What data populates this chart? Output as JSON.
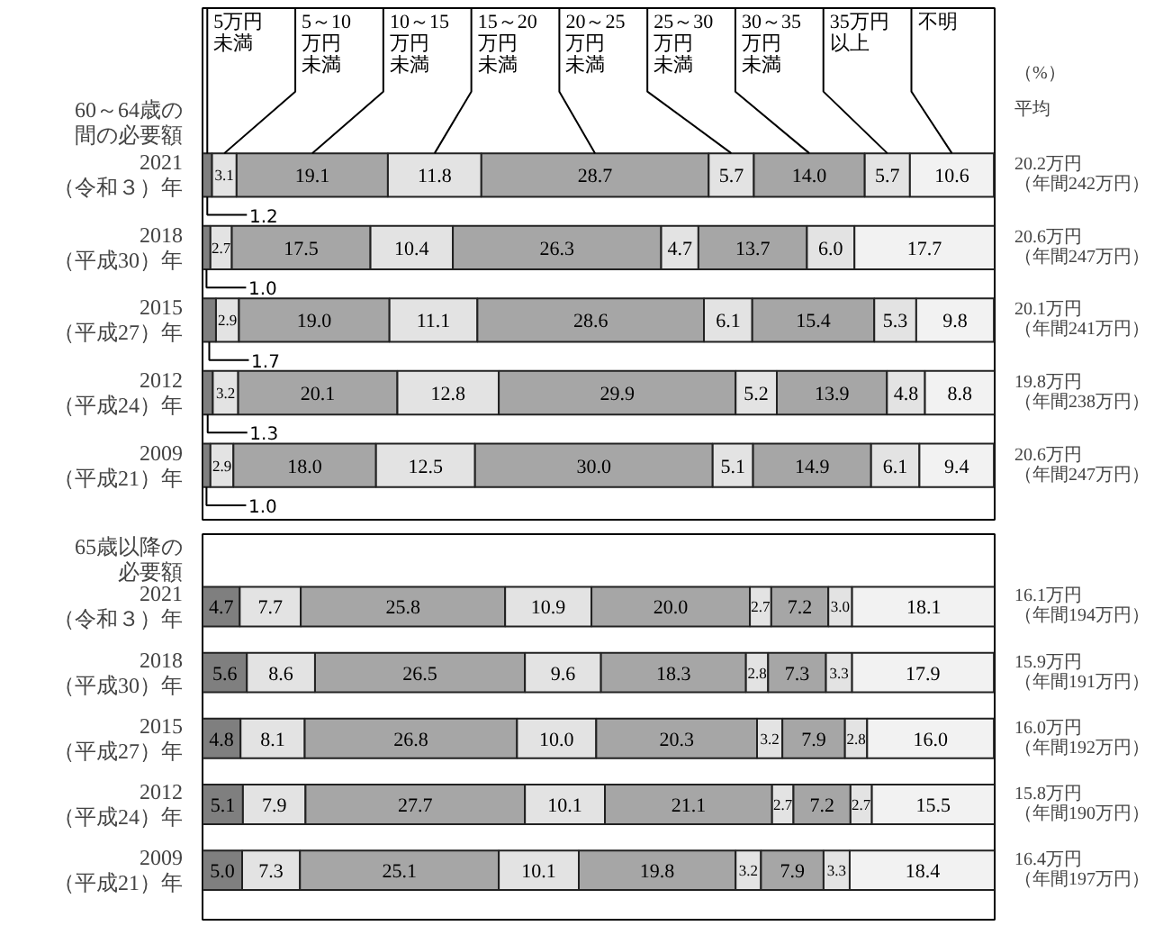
{
  "chart_data": [
    {
      "type": "bar",
      "orientation": "horizontal",
      "stacked": true,
      "title": "60～64歳の間の必要額",
      "categories": [
        "2021（令和３）年",
        "2018（平成30）年",
        "2015（平成27）年",
        "2012（平成24）年",
        "2009（平成21）年"
      ],
      "xlim": [
        0,
        100
      ],
      "tick_labels": "y",
      "legend": "top",
      "series": [
        {
          "name": "5万円未満",
          "color": "#7f7f7f",
          "values": [
            1.2,
            1.0,
            1.7,
            1.3,
            1.0
          ],
          "value_labels": [
            "1.2",
            "1.0",
            "1.7",
            "1.3",
            "1.0"
          ]
        },
        {
          "name": "5～10万円未満",
          "color": "#e3e3e3",
          "values": [
            3.1,
            2.7,
            2.9,
            3.2,
            2.9
          ],
          "value_labels": [
            "3.1",
            "2.7",
            "2.9",
            "3.2",
            "2.9"
          ]
        },
        {
          "name": "10～15万円未満",
          "color": "#a6a6a6",
          "values": [
            19.1,
            17.5,
            19.0,
            20.1,
            18.0
          ],
          "value_labels": [
            "19.1",
            "17.5",
            "19.0",
            "20.1",
            "18.0"
          ]
        },
        {
          "name": "15～20万円未満",
          "color": "#e3e3e3",
          "values": [
            11.8,
            10.4,
            11.1,
            12.8,
            12.5
          ],
          "value_labels": [
            "11.8",
            "10.4",
            "11.1",
            "12.8",
            "12.5"
          ]
        },
        {
          "name": "20～25万円未満",
          "color": "#a6a6a6",
          "values": [
            28.7,
            26.3,
            28.6,
            29.9,
            30.0
          ],
          "value_labels": [
            "28.7",
            "26.3",
            "28.6",
            "29.9",
            "30.0"
          ]
        },
        {
          "name": "25～30万円未満",
          "color": "#e3e3e3",
          "values": [
            5.7,
            4.7,
            6.1,
            5.2,
            5.1
          ],
          "value_labels": [
            "5.7",
            "4.7",
            "6.1",
            "5.2",
            "5.1"
          ]
        },
        {
          "name": "30～35万円未満",
          "color": "#a6a6a6",
          "values": [
            14.0,
            13.7,
            15.4,
            13.9,
            14.9
          ],
          "value_labels": [
            "14.0",
            "13.7",
            "15.4",
            "13.9",
            "14.9"
          ]
        },
        {
          "name": "35万円以上",
          "color": "#e3e3e3",
          "values": [
            5.7,
            6.0,
            5.3,
            4.8,
            6.1
          ],
          "value_labels": [
            "5.7",
            "6.0",
            "5.3",
            "4.8",
            "6.1"
          ]
        },
        {
          "name": "不明",
          "color": "#f2f2f2",
          "values": [
            10.6,
            17.7,
            9.8,
            8.8,
            9.4
          ],
          "value_labels": [
            "10.6",
            "17.7",
            "9.8",
            "8.8",
            "9.4"
          ]
        }
      ],
      "annotations": [
        "（%）",
        "平均",
        "20.2万円（年間242万円）",
        "20.6万円（年間247万円）",
        "20.1万円（年間241万円）",
        "19.8万円（年間238万円）",
        "20.6万円（年間247万円）"
      ]
    },
    {
      "type": "bar",
      "orientation": "horizontal",
      "stacked": true,
      "title": "65歳以降の必要額",
      "categories": [
        "2021（令和３）年",
        "2018（平成30）年",
        "2015（平成27）年",
        "2012（平成24）年",
        "2009（平成21）年"
      ],
      "xlim": [
        0,
        100
      ],
      "tick_labels": "y",
      "series": [
        {
          "color": "#7f7f7f",
          "values": [
            4.7,
            5.6,
            4.8,
            5.1,
            5.0
          ],
          "value_labels": [
            "4.7",
            "5.6",
            "4.8",
            "5.1",
            "5.0"
          ]
        },
        {
          "color": "#e3e3e3",
          "values": [
            7.7,
            8.6,
            8.1,
            7.9,
            7.3
          ],
          "value_labels": [
            "7.7",
            "8.6",
            "8.1",
            "7.9",
            "7.3"
          ]
        },
        {
          "color": "#a6a6a6",
          "values": [
            25.8,
            26.5,
            26.8,
            27.7,
            25.1
          ],
          "value_labels": [
            "25.8",
            "26.5",
            "26.8",
            "27.7",
            "25.1"
          ]
        },
        {
          "color": "#e3e3e3",
          "values": [
            10.9,
            9.6,
            10.0,
            10.1,
            10.1
          ],
          "value_labels": [
            "10.9",
            "9.6",
            "10.0",
            "10.1",
            "10.1"
          ]
        },
        {
          "color": "#a6a6a6",
          "values": [
            20.0,
            18.3,
            20.3,
            21.1,
            19.8
          ],
          "value_labels": [
            "20.0",
            "18.3",
            "20.3",
            "21.1",
            "19.8"
          ]
        },
        {
          "color": "#e3e3e3",
          "values": [
            2.7,
            2.8,
            3.2,
            2.7,
            3.2
          ],
          "value_labels": [
            "2.7",
            "2.8",
            "3.2",
            "2.7",
            "3.2"
          ]
        },
        {
          "color": "#a6a6a6",
          "values": [
            7.2,
            7.3,
            7.9,
            7.2,
            7.9
          ],
          "value_labels": [
            "7.2",
            "7.3",
            "7.9",
            "7.2",
            "7.9"
          ]
        },
        {
          "color": "#e3e3e3",
          "values": [
            3.0,
            3.3,
            2.8,
            2.7,
            3.3
          ],
          "value_labels": [
            "3.0",
            "3.3",
            "2.8",
            "2.7",
            "3.3"
          ]
        },
        {
          "color": "#f2f2f2",
          "values": [
            18.1,
            17.9,
            16.0,
            15.5,
            18.4
          ],
          "value_labels": [
            "18.1",
            "17.9",
            "16.0",
            "15.5",
            "18.4"
          ]
        }
      ],
      "annotations": [
        "16.1万円（年間194万円）",
        "15.9万円（年間191万円）",
        "16.0万円（年間192万円）",
        "15.8万円（年間190万円）",
        "16.4万円（年間197万円）"
      ]
    }
  ]
}
